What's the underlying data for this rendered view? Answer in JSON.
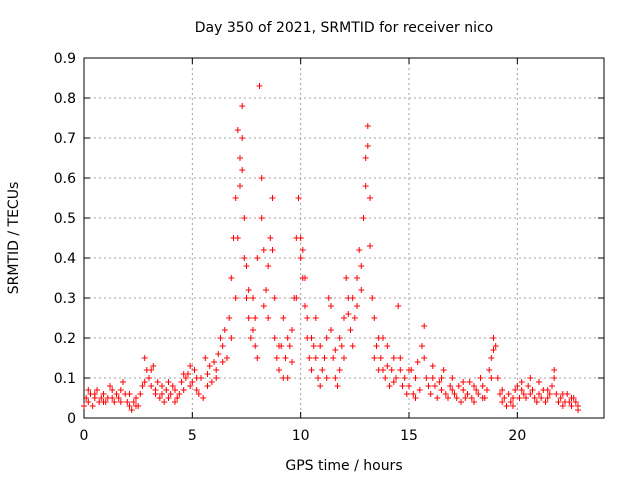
{
  "chart_data": {
    "type": "scatter",
    "title": "Day 350 of 2021, SRMTID for receiver nico",
    "xlabel": "GPS time / hours",
    "ylabel": "SRMTID / TECUs",
    "xlim": [
      0,
      24
    ],
    "ylim": [
      0,
      0.9
    ],
    "grid": true,
    "x_ticks": [
      0,
      5,
      10,
      15,
      20
    ],
    "x_tick_labels": [
      "0",
      "5",
      "10",
      "15",
      "20"
    ],
    "y_ticks": [
      0,
      0.1,
      0.2,
      0.3,
      0.4,
      0.5,
      0.6,
      0.7,
      0.8,
      0.9
    ],
    "y_tick_labels": [
      "0",
      "0.1",
      "0.2",
      "0.3",
      "0.4",
      "0.5",
      "0.6",
      "0.7",
      "0.8",
      "0.9"
    ],
    "marker": "+",
    "series": [
      {
        "name": "SRMTID",
        "color": "#ff0000",
        "points": [
          [
            0.0,
            0.03
          ],
          [
            0.1,
            0.05
          ],
          [
            0.2,
            0.04
          ],
          [
            0.3,
            0.06
          ],
          [
            0.4,
            0.03
          ],
          [
            0.5,
            0.05
          ],
          [
            0.6,
            0.07
          ],
          [
            0.7,
            0.04
          ],
          [
            0.8,
            0.05
          ],
          [
            0.9,
            0.06
          ],
          [
            1.0,
            0.04
          ],
          [
            1.1,
            0.05
          ],
          [
            1.2,
            0.08
          ],
          [
            1.3,
            0.05
          ],
          [
            1.4,
            0.04
          ],
          [
            1.5,
            0.06
          ],
          [
            1.6,
            0.05
          ],
          [
            1.7,
            0.07
          ],
          [
            1.8,
            0.09
          ],
          [
            1.9,
            0.06
          ],
          [
            2.0,
            0.04
          ],
          [
            2.1,
            0.03
          ],
          [
            2.2,
            0.02
          ],
          [
            2.3,
            0.04
          ],
          [
            2.4,
            0.05
          ],
          [
            2.5,
            0.03
          ],
          [
            2.6,
            0.06
          ],
          [
            2.7,
            0.08
          ],
          [
            2.8,
            0.15
          ],
          [
            2.9,
            0.12
          ],
          [
            3.0,
            0.1
          ],
          [
            3.1,
            0.08
          ],
          [
            3.2,
            0.13
          ],
          [
            3.3,
            0.07
          ],
          [
            3.4,
            0.09
          ],
          [
            3.5,
            0.05
          ],
          [
            3.6,
            0.06
          ],
          [
            3.7,
            0.04
          ],
          [
            3.8,
            0.07
          ],
          [
            3.9,
            0.05
          ],
          [
            4.0,
            0.06
          ],
          [
            4.1,
            0.08
          ],
          [
            4.2,
            0.07
          ],
          [
            4.3,
            0.05
          ],
          [
            4.4,
            0.06
          ],
          [
            4.5,
            0.09
          ],
          [
            4.6,
            0.07
          ],
          [
            4.7,
            0.1
          ],
          [
            4.8,
            0.11
          ],
          [
            4.9,
            0.08
          ],
          [
            5.0,
            0.09
          ],
          [
            5.1,
            0.12
          ],
          [
            5.2,
            0.07
          ],
          [
            5.3,
            0.06
          ],
          [
            5.4,
            0.1
          ],
          [
            5.5,
            0.05
          ],
          [
            5.6,
            0.15
          ],
          [
            5.7,
            0.11
          ],
          [
            5.8,
            0.13
          ],
          [
            5.9,
            0.09
          ],
          [
            6.0,
            0.14
          ],
          [
            6.1,
            0.1
          ],
          [
            6.2,
            0.16
          ],
          [
            6.3,
            0.2
          ],
          [
            6.4,
            0.18
          ],
          [
            6.5,
            0.22
          ],
          [
            6.6,
            0.15
          ],
          [
            6.7,
            0.25
          ],
          [
            6.8,
            0.35
          ],
          [
            6.9,
            0.45
          ],
          [
            7.0,
            0.55
          ],
          [
            7.1,
            0.72
          ],
          [
            7.2,
            0.65
          ],
          [
            7.3,
            0.78
          ],
          [
            7.4,
            0.5
          ],
          [
            7.5,
            0.38
          ],
          [
            7.6,
            0.25
          ],
          [
            7.7,
            0.2
          ],
          [
            7.8,
            0.3
          ],
          [
            7.9,
            0.18
          ],
          [
            8.0,
            0.15
          ],
          [
            8.1,
            0.83
          ],
          [
            8.2,
            0.6
          ],
          [
            8.3,
            0.42
          ],
          [
            8.4,
            0.32
          ],
          [
            8.5,
            0.25
          ],
          [
            8.6,
            0.45
          ],
          [
            8.7,
            0.55
          ],
          [
            8.8,
            0.2
          ],
          [
            8.9,
            0.15
          ],
          [
            9.0,
            0.12
          ],
          [
            9.1,
            0.18
          ],
          [
            9.2,
            0.25
          ],
          [
            9.3,
            0.15
          ],
          [
            9.4,
            0.1
          ],
          [
            9.5,
            0.18
          ],
          [
            9.6,
            0.22
          ],
          [
            9.7,
            0.3
          ],
          [
            9.8,
            0.45
          ],
          [
            9.9,
            0.55
          ],
          [
            10.0,
            0.4
          ],
          [
            10.1,
            0.35
          ],
          [
            10.2,
            0.28
          ],
          [
            10.3,
            0.2
          ],
          [
            10.4,
            0.15
          ],
          [
            10.5,
            0.12
          ],
          [
            10.6,
            0.18
          ],
          [
            10.7,
            0.25
          ],
          [
            10.8,
            0.1
          ],
          [
            10.9,
            0.08
          ],
          [
            11.0,
            0.12
          ],
          [
            11.1,
            0.15
          ],
          [
            11.2,
            0.2
          ],
          [
            11.3,
            0.3
          ],
          [
            11.4,
            0.22
          ],
          [
            11.5,
            0.15
          ],
          [
            11.6,
            0.1
          ],
          [
            11.7,
            0.08
          ],
          [
            11.8,
            0.12
          ],
          [
            11.9,
            0.18
          ],
          [
            12.0,
            0.25
          ],
          [
            12.1,
            0.35
          ],
          [
            12.2,
            0.3
          ],
          [
            12.3,
            0.22
          ],
          [
            12.4,
            0.18
          ],
          [
            12.5,
            0.25
          ],
          [
            12.6,
            0.35
          ],
          [
            12.7,
            0.42
          ],
          [
            12.8,
            0.32
          ],
          [
            12.9,
            0.5
          ],
          [
            13.0,
            0.65
          ],
          [
            13.1,
            0.73
          ],
          [
            13.2,
            0.55
          ],
          [
            13.3,
            0.3
          ],
          [
            13.4,
            0.25
          ],
          [
            13.5,
            0.18
          ],
          [
            13.6,
            0.2
          ],
          [
            13.7,
            0.15
          ],
          [
            13.8,
            0.12
          ],
          [
            13.9,
            0.1
          ],
          [
            14.0,
            0.18
          ],
          [
            14.1,
            0.08
          ],
          [
            14.2,
            0.12
          ],
          [
            14.3,
            0.15
          ],
          [
            14.4,
            0.1
          ],
          [
            14.5,
            0.28
          ],
          [
            14.6,
            0.12
          ],
          [
            14.7,
            0.08
          ],
          [
            14.8,
            0.1
          ],
          [
            14.9,
            0.06
          ],
          [
            15.0,
            0.08
          ],
          [
            15.1,
            0.12
          ],
          [
            15.2,
            0.06
          ],
          [
            15.3,
            0.1
          ],
          [
            15.4,
            0.14
          ],
          [
            15.5,
            0.07
          ],
          [
            15.6,
            0.18
          ],
          [
            15.7,
            0.23
          ],
          [
            15.8,
            0.1
          ],
          [
            15.9,
            0.08
          ],
          [
            16.0,
            0.06
          ],
          [
            16.1,
            0.1
          ],
          [
            16.2,
            0.08
          ],
          [
            16.3,
            0.05
          ],
          [
            16.4,
            0.09
          ],
          [
            16.5,
            0.07
          ],
          [
            16.6,
            0.12
          ],
          [
            16.7,
            0.06
          ],
          [
            16.8,
            0.05
          ],
          [
            16.9,
            0.08
          ],
          [
            17.0,
            0.1
          ],
          [
            17.1,
            0.06
          ],
          [
            17.2,
            0.05
          ],
          [
            17.3,
            0.08
          ],
          [
            17.4,
            0.04
          ],
          [
            17.5,
            0.07
          ],
          [
            17.6,
            0.05
          ],
          [
            17.7,
            0.06
          ],
          [
            17.8,
            0.09
          ],
          [
            17.9,
            0.05
          ],
          [
            18.0,
            0.04
          ],
          [
            18.1,
            0.07
          ],
          [
            18.2,
            0.06
          ],
          [
            18.3,
            0.1
          ],
          [
            18.4,
            0.08
          ],
          [
            18.5,
            0.05
          ],
          [
            18.6,
            0.07
          ],
          [
            18.7,
            0.12
          ],
          [
            18.8,
            0.15
          ],
          [
            18.9,
            0.2
          ],
          [
            19.0,
            0.18
          ],
          [
            19.1,
            0.1
          ],
          [
            19.2,
            0.06
          ],
          [
            19.3,
            0.04
          ],
          [
            19.4,
            0.05
          ],
          [
            19.5,
            0.03
          ],
          [
            19.6,
            0.06
          ],
          [
            19.7,
            0.04
          ],
          [
            19.8,
            0.05
          ],
          [
            19.9,
            0.07
          ],
          [
            20.0,
            0.08
          ],
          [
            20.1,
            0.05
          ],
          [
            20.2,
            0.09
          ],
          [
            20.3,
            0.06
          ],
          [
            20.4,
            0.05
          ],
          [
            20.5,
            0.08
          ],
          [
            20.6,
            0.1
          ],
          [
            20.7,
            0.07
          ],
          [
            20.8,
            0.05
          ],
          [
            20.9,
            0.04
          ],
          [
            21.0,
            0.06
          ],
          [
            21.1,
            0.05
          ],
          [
            21.2,
            0.07
          ],
          [
            21.3,
            0.04
          ],
          [
            21.4,
            0.05
          ],
          [
            21.5,
            0.06
          ],
          [
            21.6,
            0.08
          ],
          [
            21.7,
            0.12
          ],
          [
            21.8,
            0.06
          ],
          [
            21.9,
            0.04
          ],
          [
            22.0,
            0.05
          ],
          [
            22.1,
            0.03
          ],
          [
            22.2,
            0.04
          ],
          [
            22.3,
            0.06
          ],
          [
            22.4,
            0.04
          ],
          [
            22.5,
            0.03
          ],
          [
            22.6,
            0.05
          ],
          [
            22.7,
            0.04
          ],
          [
            22.8,
            0.03
          ],
          [
            0.2,
            0.07
          ],
          [
            0.5,
            0.06
          ],
          [
            0.9,
            0.04
          ],
          [
            1.3,
            0.07
          ],
          [
            1.7,
            0.04
          ],
          [
            2.1,
            0.06
          ],
          [
            2.4,
            0.03
          ],
          [
            2.8,
            0.09
          ],
          [
            3.1,
            0.12
          ],
          [
            3.3,
            0.06
          ],
          [
            3.6,
            0.08
          ],
          [
            3.9,
            0.09
          ],
          [
            4.2,
            0.04
          ],
          [
            4.6,
            0.11
          ],
          [
            4.9,
            0.13
          ],
          [
            5.2,
            0.1
          ],
          [
            5.7,
            0.08
          ],
          [
            6.1,
            0.12
          ],
          [
            6.4,
            0.14
          ],
          [
            6.8,
            0.2
          ],
          [
            7.0,
            0.3
          ],
          [
            7.1,
            0.45
          ],
          [
            7.2,
            0.58
          ],
          [
            7.3,
            0.62
          ],
          [
            7.3,
            0.7
          ],
          [
            7.4,
            0.4
          ],
          [
            7.5,
            0.3
          ],
          [
            7.6,
            0.32
          ],
          [
            7.8,
            0.22
          ],
          [
            7.9,
            0.25
          ],
          [
            8.0,
            0.4
          ],
          [
            8.2,
            0.5
          ],
          [
            8.3,
            0.28
          ],
          [
            8.5,
            0.38
          ],
          [
            8.7,
            0.42
          ],
          [
            8.8,
            0.3
          ],
          [
            9.0,
            0.18
          ],
          [
            9.2,
            0.1
          ],
          [
            9.4,
            0.2
          ],
          [
            9.6,
            0.14
          ],
          [
            9.8,
            0.3
          ],
          [
            10.0,
            0.45
          ],
          [
            10.1,
            0.42
          ],
          [
            10.2,
            0.35
          ],
          [
            10.3,
            0.25
          ],
          [
            10.5,
            0.2
          ],
          [
            10.7,
            0.15
          ],
          [
            10.9,
            0.18
          ],
          [
            11.2,
            0.1
          ],
          [
            11.4,
            0.28
          ],
          [
            11.6,
            0.17
          ],
          [
            11.8,
            0.2
          ],
          [
            12.0,
            0.15
          ],
          [
            12.2,
            0.26
          ],
          [
            12.4,
            0.3
          ],
          [
            12.6,
            0.28
          ],
          [
            12.8,
            0.38
          ],
          [
            13.0,
            0.58
          ],
          [
            13.1,
            0.68
          ],
          [
            13.2,
            0.43
          ],
          [
            13.4,
            0.15
          ],
          [
            13.6,
            0.12
          ],
          [
            13.8,
            0.2
          ],
          [
            14.0,
            0.13
          ],
          [
            14.3,
            0.09
          ],
          [
            14.6,
            0.15
          ],
          [
            15.0,
            0.12
          ],
          [
            15.3,
            0.05
          ],
          [
            15.7,
            0.15
          ],
          [
            16.1,
            0.13
          ],
          [
            16.5,
            0.1
          ],
          [
            17.0,
            0.07
          ],
          [
            17.5,
            0.09
          ],
          [
            18.0,
            0.08
          ],
          [
            18.4,
            0.05
          ],
          [
            18.8,
            0.1
          ],
          [
            18.9,
            0.17
          ],
          [
            19.3,
            0.07
          ],
          [
            19.8,
            0.03
          ],
          [
            20.2,
            0.07
          ],
          [
            20.6,
            0.06
          ],
          [
            21.0,
            0.09
          ],
          [
            21.4,
            0.07
          ],
          [
            21.7,
            0.1
          ],
          [
            22.1,
            0.06
          ],
          [
            22.5,
            0.05
          ],
          [
            22.8,
            0.02
          ]
        ]
      }
    ]
  }
}
